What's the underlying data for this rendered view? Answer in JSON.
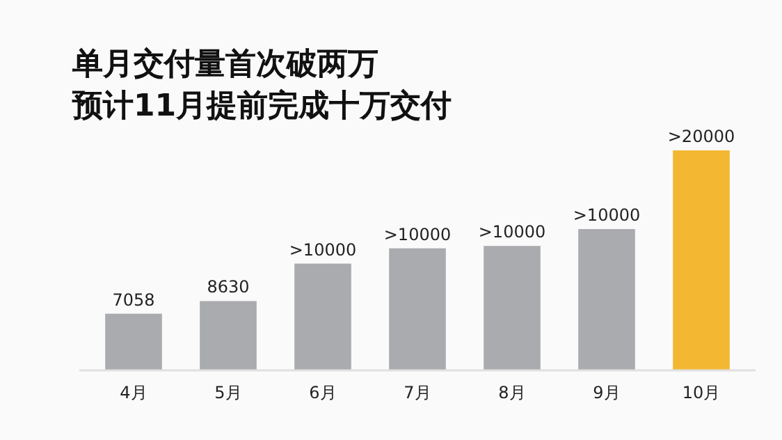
{
  "chart_data": {
    "type": "bar",
    "title": "单月交付量首次破两万",
    "subtitle": "预计11月提前完成十万交付",
    "categories": [
      "4月",
      "5月",
      "6月",
      "7月",
      "8月",
      "9月",
      "10月"
    ],
    "values": [
      7058,
      8630,
      13300,
      15200,
      15500,
      17600,
      27400
    ],
    "value_labels": [
      "7058",
      "8630",
      ">10000",
      ">10000",
      ">10000",
      ">10000",
      ">20000"
    ],
    "colors": [
      "#a9abae",
      "#a9abae",
      "#a9abae",
      "#a9abae",
      "#a9abae",
      "#a9abae",
      "#f4b731"
    ]
  }
}
